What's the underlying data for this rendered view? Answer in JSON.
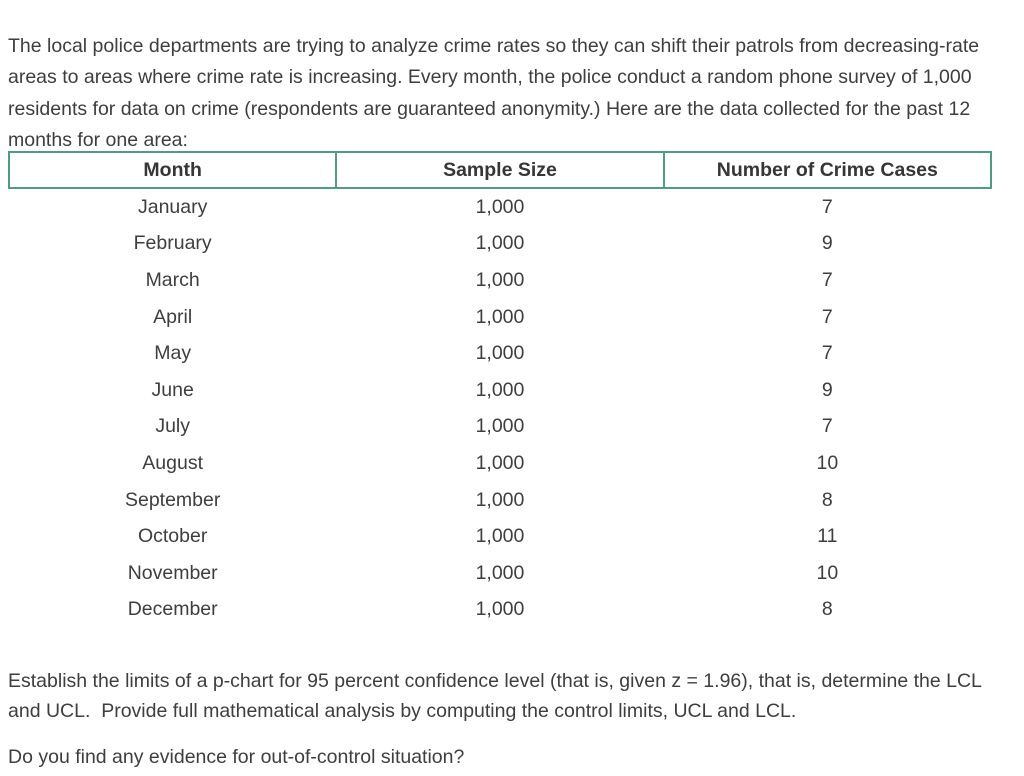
{
  "intro": "The local police departments are trying to analyze crime rates so they can shift their patrols from decreasing-rate areas to areas where crime rate is increasing. Every month, the police conduct a random phone survey of 1,000 residents for data on crime (respondents are guaranteed anonymity.) Here are the data collected for the past 12 months for one area:",
  "table": {
    "border_color": "#4d9c83",
    "headers": [
      "Month",
      "Sample Size",
      "Number of Crime Cases"
    ],
    "rows": [
      {
        "month": "January",
        "sample_size": "1,000",
        "crime_cases": "7"
      },
      {
        "month": "February",
        "sample_size": "1,000",
        "crime_cases": "9"
      },
      {
        "month": "March",
        "sample_size": "1,000",
        "crime_cases": "7"
      },
      {
        "month": "April",
        "sample_size": "1,000",
        "crime_cases": "7"
      },
      {
        "month": "May",
        "sample_size": "1,000",
        "crime_cases": "7"
      },
      {
        "month": "June",
        "sample_size": "1,000",
        "crime_cases": "9"
      },
      {
        "month": "July",
        "sample_size": "1,000",
        "crime_cases": "7"
      },
      {
        "month": "August",
        "sample_size": "1,000",
        "crime_cases": "10"
      },
      {
        "month": "September",
        "sample_size": "1,000",
        "crime_cases": "8"
      },
      {
        "month": "October",
        "sample_size": "1,000",
        "crime_cases": "11"
      },
      {
        "month": "November",
        "sample_size": "1,000",
        "crime_cases": "10"
      },
      {
        "month": "December",
        "sample_size": "1,000",
        "crime_cases": "8"
      }
    ]
  },
  "question1": "Establish the limits of a p-chart for 95 percent confidence level (that is, given z = 1.96), that is, determine the LCL and UCL.  Provide full mathematical analysis by computing the control limits, UCL and LCL.",
  "question2": "Do you find any evidence for out-of-control situation?",
  "chart_data": {
    "type": "table",
    "title": "Monthly crime survey data (12 months, one area)",
    "columns": [
      "Month",
      "Sample Size",
      "Number of Crime Cases"
    ],
    "months": [
      "January",
      "February",
      "March",
      "April",
      "May",
      "June",
      "July",
      "August",
      "September",
      "October",
      "November",
      "December"
    ],
    "sample_sizes": [
      1000,
      1000,
      1000,
      1000,
      1000,
      1000,
      1000,
      1000,
      1000,
      1000,
      1000,
      1000
    ],
    "crime_cases": [
      7,
      9,
      7,
      7,
      7,
      9,
      7,
      10,
      8,
      11,
      10,
      8
    ],
    "z_value": 1.96,
    "confidence_level_percent": 95
  }
}
